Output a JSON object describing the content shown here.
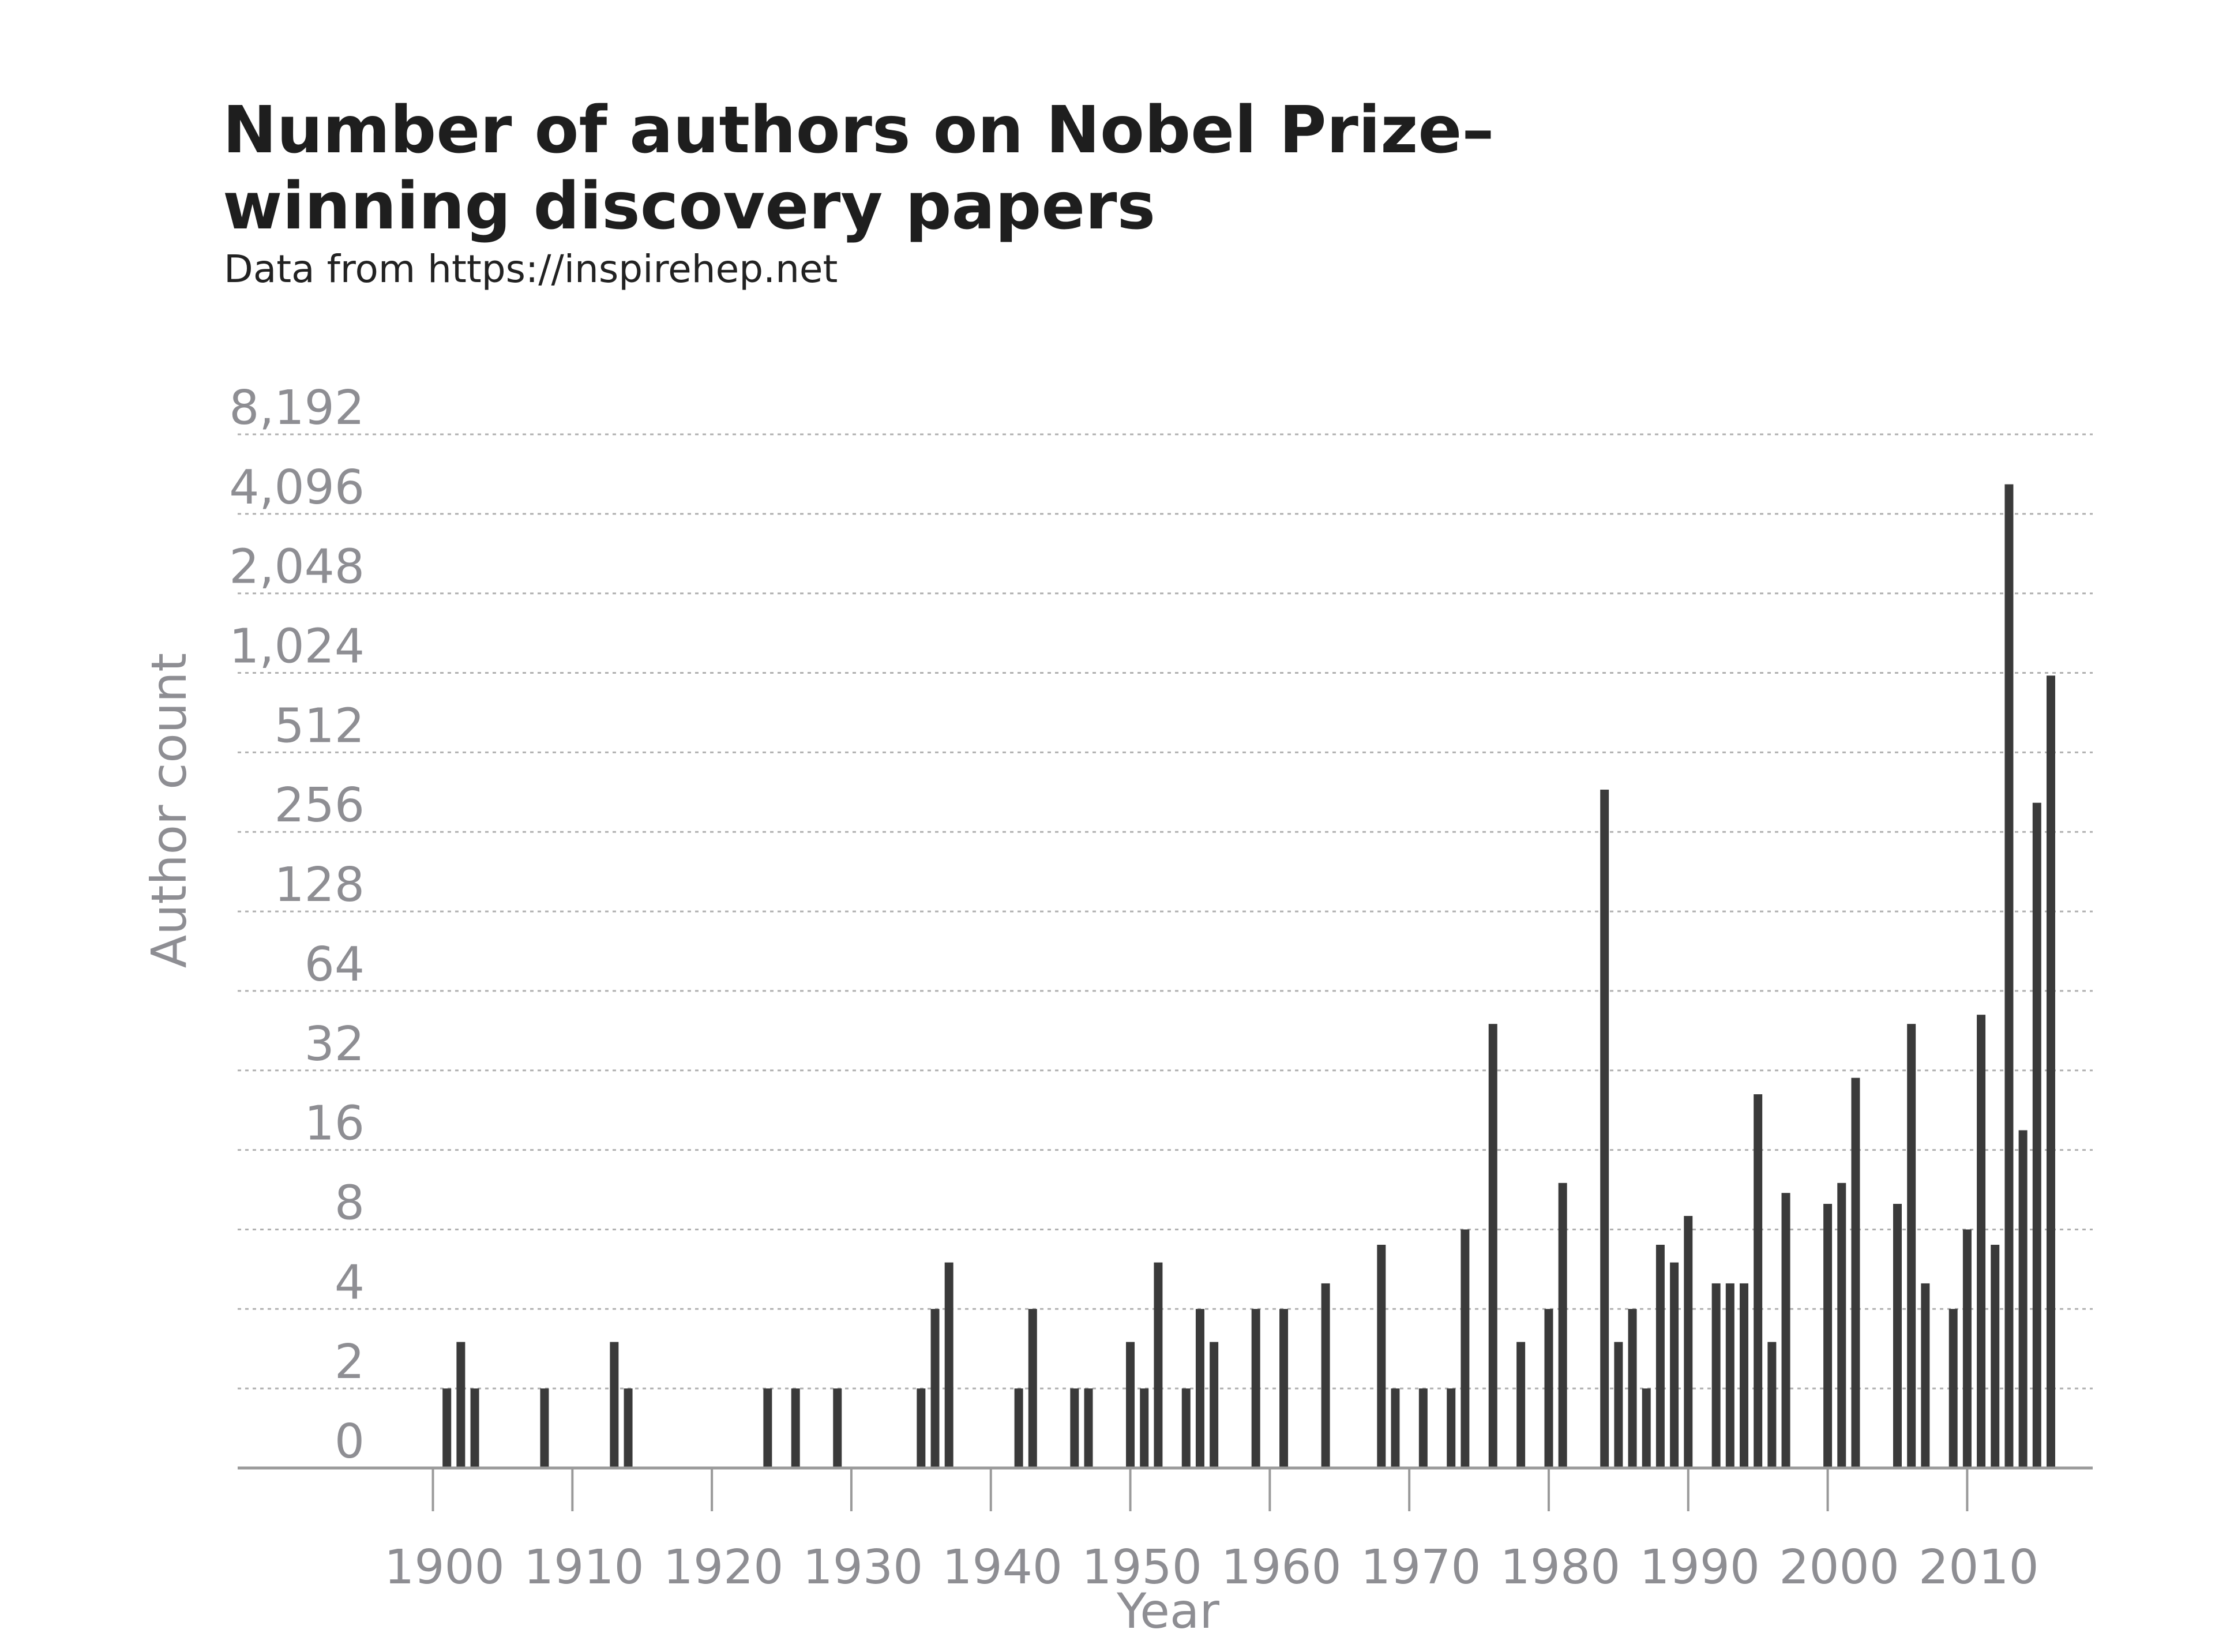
{
  "header": {
    "title_line1": "Number of authors on Nobel Prize–",
    "title_line2": "winning discovery papers",
    "subtitle": "Data from https://inspirehep.net"
  },
  "colors": {
    "bar": "#3a3a3a",
    "grid": "#b0b0b0",
    "axis": "#9a9a9a",
    "tick_text": "#8e8e93"
  },
  "chart_data": {
    "type": "bar",
    "title": "Number of authors on Nobel Prize–winning discovery papers",
    "subtitle": "Data from https://inspirehep.net",
    "xlabel": "Year",
    "ylabel": "Author count",
    "y_scale": "log2",
    "grid": "horizontal dotted",
    "xlim": [
      1886,
      2019
    ],
    "xticks": [
      1900,
      1910,
      1920,
      1930,
      1940,
      1950,
      1960,
      1970,
      1980,
      1990,
      2000,
      2010
    ],
    "xtick_labels": [
      "1900",
      "1910",
      "1920",
      "1930",
      "1940",
      "1950",
      "1960",
      "1970",
      "1980",
      "1990",
      "2000",
      "2010"
    ],
    "yticks": [
      0,
      2,
      4,
      8,
      16,
      32,
      64,
      128,
      256,
      512,
      1024,
      2048,
      4096,
      8192
    ],
    "ytick_labels": [
      "0",
      "2",
      "4",
      "8",
      "16",
      "32",
      "64",
      "128",
      "256",
      "512",
      "1,024",
      "2,048",
      "4,096",
      "8,192"
    ],
    "bars": [
      {
        "x": 1901,
        "y": 2
      },
      {
        "x": 1902,
        "y": 3
      },
      {
        "x": 1903,
        "y": 2
      },
      {
        "x": 1908,
        "y": 2
      },
      {
        "x": 1913,
        "y": 3
      },
      {
        "x": 1914,
        "y": 2
      },
      {
        "x": 1924,
        "y": 2
      },
      {
        "x": 1926,
        "y": 2
      },
      {
        "x": 1929,
        "y": 2
      },
      {
        "x": 1935,
        "y": 2
      },
      {
        "x": 1936,
        "y": 4
      },
      {
        "x": 1937,
        "y": 6
      },
      {
        "x": 1942,
        "y": 2
      },
      {
        "x": 1943,
        "y": 4
      },
      {
        "x": 1946,
        "y": 2
      },
      {
        "x": 1947,
        "y": 2
      },
      {
        "x": 1950,
        "y": 3
      },
      {
        "x": 1951,
        "y": 2
      },
      {
        "x": 1952,
        "y": 6
      },
      {
        "x": 1954,
        "y": 2
      },
      {
        "x": 1955,
        "y": 4
      },
      {
        "x": 1956,
        "y": 3
      },
      {
        "x": 1959,
        "y": 4
      },
      {
        "x": 1961,
        "y": 4
      },
      {
        "x": 1964,
        "y": 5
      },
      {
        "x": 1968,
        "y": 7
      },
      {
        "x": 1969,
        "y": 2
      },
      {
        "x": 1971,
        "y": 2
      },
      {
        "x": 1973,
        "y": 2
      },
      {
        "x": 1974,
        "y": 8
      },
      {
        "x": 1976,
        "y": 48
      },
      {
        "x": 1978,
        "y": 3
      },
      {
        "x": 1980,
        "y": 4
      },
      {
        "x": 1981,
        "y": 12
      },
      {
        "x": 1984,
        "y": 370
      },
      {
        "x": 1985,
        "y": 3
      },
      {
        "x": 1986,
        "y": 4
      },
      {
        "x": 1987,
        "y": 2
      },
      {
        "x": 1988,
        "y": 7
      },
      {
        "x": 1989,
        "y": 6
      },
      {
        "x": 1990,
        "y": 9
      },
      {
        "x": 1992,
        "y": 5
      },
      {
        "x": 1993,
        "y": 5
      },
      {
        "x": 1994,
        "y": 5
      },
      {
        "x": 1995,
        "y": 26
      },
      {
        "x": 1996,
        "y": 3
      },
      {
        "x": 1997,
        "y": 11
      },
      {
        "x": 2000,
        "y": 10
      },
      {
        "x": 2001,
        "y": 12
      },
      {
        "x": 2002,
        "y": 30
      },
      {
        "x": 2005,
        "y": 10
      },
      {
        "x": 2006,
        "y": 48
      },
      {
        "x": 2007,
        "y": 5
      },
      {
        "x": 2009,
        "y": 4
      },
      {
        "x": 2010,
        "y": 8
      },
      {
        "x": 2011,
        "y": 52
      },
      {
        "x": 2012,
        "y": 7
      },
      {
        "x": 2013,
        "y": 5300
      },
      {
        "x": 2014,
        "y": 19
      },
      {
        "x": 2015,
        "y": 330
      },
      {
        "x": 2016,
        "y": 1000
      }
    ]
  }
}
